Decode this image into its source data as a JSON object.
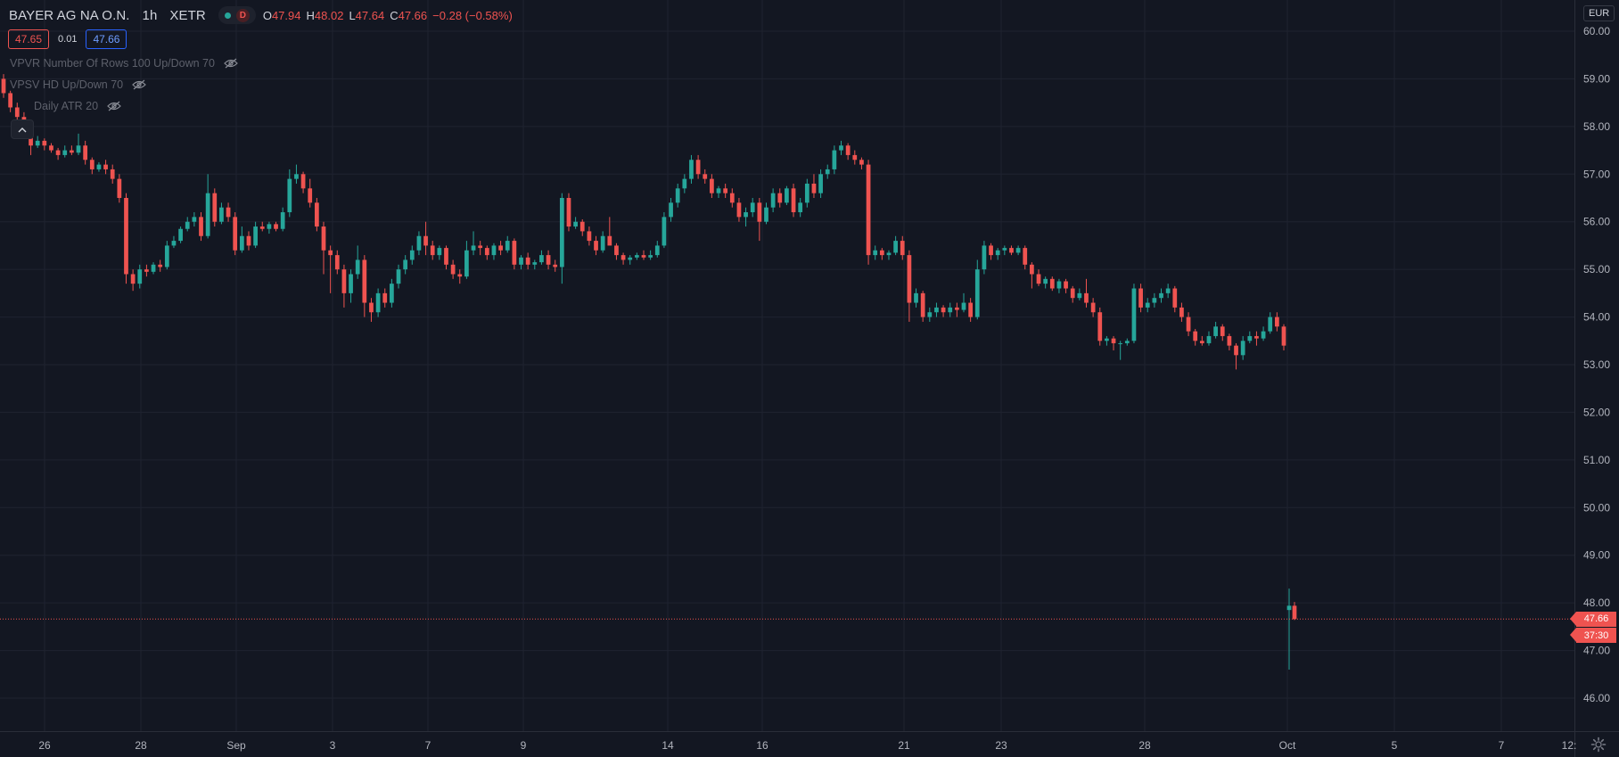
{
  "header": {
    "symbol": "BAYER AG NA O.N.",
    "interval": "1h",
    "exchange": "XETR",
    "market_status_letter": "D",
    "ohlc": {
      "o_label": "O",
      "o": "47.94",
      "h_label": "H",
      "h": "48.02",
      "l_label": "L",
      "l": "47.64",
      "c_label": "C",
      "c": "47.66",
      "change": "−0.28 (−0.58%)"
    },
    "bid": "47.65",
    "spread": "0.01",
    "ask": "47.66"
  },
  "indicators": [
    {
      "label": "VPVR Number Of Rows 100 Up/Down 70"
    },
    {
      "label": "VPSV HD Up/Down 70"
    },
    {
      "label": "Daily ATR 20"
    }
  ],
  "currency": "EUR",
  "last_price_label": "47.66",
  "countdown_label": "37:30",
  "colors": {
    "background": "#131722",
    "up": "#26a69a",
    "down": "#ef5350",
    "grid": "#1f2330",
    "axis_text": "#b2b5be"
  },
  "icons": {
    "eye": "eye-off-icon",
    "collapse": "chevron-up-icon",
    "settings": "gear-icon"
  },
  "chart_data": {
    "type": "candlestick",
    "y_unit": "EUR",
    "ylim": [
      45.3,
      60.3
    ],
    "y_ticks": [
      "60.00",
      "59.00",
      "58.00",
      "57.00",
      "56.00",
      "55.00",
      "54.00",
      "53.00",
      "52.00",
      "51.00",
      "50.00",
      "49.00",
      "48.00",
      "47.00",
      "46.00"
    ],
    "x_ticks": [
      "26",
      "28",
      "Sep",
      "3",
      "7",
      "9",
      "14",
      "16",
      "21",
      "23",
      "28",
      "Oct",
      "5",
      "7",
      "12:"
    ],
    "last_price": 47.66,
    "candles": [
      [
        59.0,
        59.1,
        58.6,
        58.7
      ],
      [
        58.7,
        58.75,
        58.3,
        58.4
      ],
      [
        58.4,
        58.5,
        58.1,
        58.2
      ],
      [
        58.2,
        58.3,
        57.8,
        57.9
      ],
      [
        57.9,
        58.0,
        57.4,
        57.6
      ],
      [
        57.6,
        57.8,
        57.55,
        57.7
      ],
      [
        57.7,
        57.75,
        57.5,
        57.6
      ],
      [
        57.6,
        57.65,
        57.45,
        57.5
      ],
      [
        57.5,
        57.55,
        57.3,
        57.4
      ],
      [
        57.4,
        57.6,
        57.35,
        57.5
      ],
      [
        57.5,
        57.6,
        57.4,
        57.45
      ],
      [
        57.45,
        57.85,
        57.4,
        57.6
      ],
      [
        57.6,
        57.7,
        57.2,
        57.3
      ],
      [
        57.3,
        57.35,
        57.0,
        57.1
      ],
      [
        57.1,
        57.25,
        57.05,
        57.2
      ],
      [
        57.2,
        57.3,
        57.0,
        57.1
      ],
      [
        57.1,
        57.2,
        56.8,
        56.9
      ],
      [
        56.9,
        57.0,
        56.4,
        56.5
      ],
      [
        56.5,
        56.6,
        54.7,
        54.9
      ],
      [
        54.9,
        55.0,
        54.55,
        54.7
      ],
      [
        54.7,
        55.1,
        54.6,
        55.0
      ],
      [
        55.0,
        55.1,
        54.85,
        54.95
      ],
      [
        54.95,
        55.15,
        54.9,
        55.1
      ],
      [
        55.1,
        55.2,
        54.95,
        55.05
      ],
      [
        55.05,
        55.6,
        55.0,
        55.5
      ],
      [
        55.5,
        55.7,
        55.45,
        55.6
      ],
      [
        55.6,
        55.9,
        55.55,
        55.85
      ],
      [
        55.85,
        56.1,
        55.8,
        56.0
      ],
      [
        56.0,
        56.2,
        55.9,
        56.1
      ],
      [
        56.1,
        56.2,
        55.6,
        55.7
      ],
      [
        55.7,
        57.0,
        55.65,
        56.6
      ],
      [
        56.6,
        56.7,
        55.9,
        56.0
      ],
      [
        56.0,
        56.4,
        55.95,
        56.3
      ],
      [
        56.3,
        56.4,
        56.0,
        56.1
      ],
      [
        56.1,
        56.2,
        55.3,
        55.4
      ],
      [
        55.4,
        55.9,
        55.35,
        55.7
      ],
      [
        55.7,
        55.8,
        55.4,
        55.5
      ],
      [
        55.5,
        56.0,
        55.45,
        55.9
      ],
      [
        55.9,
        56.0,
        55.8,
        55.85
      ],
      [
        55.85,
        56.0,
        55.75,
        55.95
      ],
      [
        55.95,
        56.0,
        55.8,
        55.85
      ],
      [
        55.85,
        56.3,
        55.8,
        56.2
      ],
      [
        56.2,
        57.1,
        56.1,
        56.9
      ],
      [
        56.9,
        57.2,
        56.8,
        57.0
      ],
      [
        57.0,
        57.05,
        56.6,
        56.7
      ],
      [
        56.7,
        56.9,
        56.3,
        56.4
      ],
      [
        56.4,
        56.5,
        55.8,
        55.9
      ],
      [
        55.9,
        56.0,
        54.9,
        55.4
      ],
      [
        55.4,
        55.5,
        54.5,
        55.3
      ],
      [
        55.3,
        55.4,
        54.9,
        55.0
      ],
      [
        55.0,
        55.1,
        54.2,
        54.5
      ],
      [
        54.5,
        55.0,
        54.3,
        54.9
      ],
      [
        54.9,
        55.5,
        54.8,
        55.2
      ],
      [
        55.2,
        55.3,
        54.0,
        54.3
      ],
      [
        54.3,
        54.4,
        53.9,
        54.1
      ],
      [
        54.1,
        54.6,
        54.0,
        54.5
      ],
      [
        54.5,
        54.6,
        54.2,
        54.3
      ],
      [
        54.3,
        54.8,
        54.2,
        54.7
      ],
      [
        54.7,
        55.1,
        54.6,
        55.0
      ],
      [
        55.0,
        55.3,
        54.9,
        55.2
      ],
      [
        55.2,
        55.5,
        55.1,
        55.4
      ],
      [
        55.4,
        55.8,
        55.3,
        55.7
      ],
      [
        55.7,
        56.0,
        55.3,
        55.5
      ],
      [
        55.5,
        55.6,
        55.2,
        55.3
      ],
      [
        55.3,
        55.5,
        55.2,
        55.45
      ],
      [
        55.45,
        55.5,
        55.0,
        55.1
      ],
      [
        55.1,
        55.2,
        54.8,
        54.9
      ],
      [
        54.9,
        55.0,
        54.7,
        54.85
      ],
      [
        54.85,
        55.6,
        54.8,
        55.4
      ],
      [
        55.4,
        55.8,
        55.3,
        55.5
      ],
      [
        55.5,
        55.6,
        55.3,
        55.45
      ],
      [
        55.45,
        55.5,
        55.2,
        55.3
      ],
      [
        55.3,
        55.55,
        55.2,
        55.5
      ],
      [
        55.5,
        55.6,
        55.3,
        55.4
      ],
      [
        55.4,
        55.7,
        55.35,
        55.6
      ],
      [
        55.6,
        55.65,
        55.0,
        55.1
      ],
      [
        55.1,
        55.3,
        55.0,
        55.25
      ],
      [
        55.25,
        55.35,
        55.0,
        55.1
      ],
      [
        55.1,
        55.2,
        55.0,
        55.15
      ],
      [
        55.15,
        55.4,
        55.1,
        55.3
      ],
      [
        55.3,
        55.4,
        55.0,
        55.1
      ],
      [
        55.1,
        55.2,
        54.95,
        55.05
      ],
      [
        55.05,
        56.6,
        54.7,
        56.5
      ],
      [
        56.5,
        56.6,
        55.8,
        55.9
      ],
      [
        55.9,
        56.1,
        55.85,
        56.0
      ],
      [
        56.0,
        56.05,
        55.7,
        55.8
      ],
      [
        55.8,
        55.9,
        55.5,
        55.6
      ],
      [
        55.6,
        55.7,
        55.3,
        55.4
      ],
      [
        55.4,
        55.8,
        55.35,
        55.7
      ],
      [
        55.7,
        56.1,
        55.6,
        55.5
      ],
      [
        55.5,
        55.55,
        55.2,
        55.3
      ],
      [
        55.3,
        55.35,
        55.1,
        55.2
      ],
      [
        55.2,
        55.3,
        55.1,
        55.25
      ],
      [
        55.25,
        55.35,
        55.2,
        55.3
      ],
      [
        55.3,
        55.4,
        55.2,
        55.25
      ],
      [
        55.25,
        55.4,
        55.2,
        55.3
      ],
      [
        55.3,
        55.6,
        55.25,
        55.5
      ],
      [
        55.5,
        56.2,
        55.45,
        56.1
      ],
      [
        56.1,
        56.5,
        56.0,
        56.4
      ],
      [
        56.4,
        56.8,
        56.3,
        56.7
      ],
      [
        56.7,
        57.0,
        56.6,
        56.9
      ],
      [
        56.9,
        57.4,
        56.8,
        57.3
      ],
      [
        57.3,
        57.4,
        56.9,
        57.0
      ],
      [
        57.0,
        57.1,
        56.8,
        56.9
      ],
      [
        56.9,
        57.0,
        56.5,
        56.6
      ],
      [
        56.6,
        56.75,
        56.5,
        56.7
      ],
      [
        56.7,
        56.8,
        56.5,
        56.6
      ],
      [
        56.6,
        56.7,
        56.3,
        56.4
      ],
      [
        56.4,
        56.5,
        56.0,
        56.1
      ],
      [
        56.1,
        56.3,
        55.9,
        56.2
      ],
      [
        56.2,
        56.5,
        56.1,
        56.4
      ],
      [
        56.4,
        56.5,
        55.6,
        56.0
      ],
      [
        56.0,
        56.4,
        55.95,
        56.3
      ],
      [
        56.3,
        56.7,
        56.2,
        56.6
      ],
      [
        56.6,
        56.7,
        56.3,
        56.4
      ],
      [
        56.4,
        56.75,
        56.35,
        56.7
      ],
      [
        56.7,
        56.8,
        56.1,
        56.2
      ],
      [
        56.2,
        56.5,
        56.1,
        56.4
      ],
      [
        56.4,
        56.9,
        56.3,
        56.8
      ],
      [
        56.8,
        57.0,
        56.5,
        56.6
      ],
      [
        56.6,
        57.1,
        56.5,
        57.0
      ],
      [
        57.0,
        57.2,
        56.9,
        57.1
      ],
      [
        57.1,
        57.6,
        57.0,
        57.5
      ],
      [
        57.5,
        57.7,
        57.4,
        57.6
      ],
      [
        57.6,
        57.65,
        57.3,
        57.4
      ],
      [
        57.4,
        57.5,
        57.2,
        57.3
      ],
      [
        57.3,
        57.35,
        57.1,
        57.2
      ],
      [
        57.2,
        57.3,
        55.1,
        55.3
      ],
      [
        55.3,
        55.5,
        55.2,
        55.4
      ],
      [
        55.4,
        55.45,
        55.2,
        55.3
      ],
      [
        55.3,
        55.4,
        55.2,
        55.35
      ],
      [
        55.35,
        55.7,
        55.3,
        55.6
      ],
      [
        55.6,
        55.7,
        55.2,
        55.3
      ],
      [
        55.3,
        55.4,
        53.9,
        54.3
      ],
      [
        54.3,
        54.6,
        54.2,
        54.5
      ],
      [
        54.5,
        54.55,
        53.9,
        54.0
      ],
      [
        54.0,
        54.2,
        53.9,
        54.1
      ],
      [
        54.1,
        54.3,
        54.0,
        54.2
      ],
      [
        54.2,
        54.25,
        54.0,
        54.1
      ],
      [
        54.1,
        54.3,
        54.0,
        54.2
      ],
      [
        54.2,
        54.3,
        54.0,
        54.15
      ],
      [
        54.15,
        54.5,
        54.1,
        54.3
      ],
      [
        54.3,
        54.4,
        53.9,
        54.0
      ],
      [
        54.0,
        55.2,
        53.95,
        55.0
      ],
      [
        55.0,
        55.6,
        54.9,
        55.5
      ],
      [
        55.5,
        55.55,
        55.2,
        55.3
      ],
      [
        55.3,
        55.45,
        55.2,
        55.4
      ],
      [
        55.4,
        55.5,
        55.3,
        55.45
      ],
      [
        55.45,
        55.5,
        55.3,
        55.35
      ],
      [
        55.35,
        55.5,
        55.3,
        55.45
      ],
      [
        55.45,
        55.5,
        55.0,
        55.1
      ],
      [
        55.1,
        55.15,
        54.6,
        54.9
      ],
      [
        54.9,
        55.0,
        54.65,
        54.7
      ],
      [
        54.7,
        54.85,
        54.6,
        54.8
      ],
      [
        54.8,
        54.85,
        54.55,
        54.6
      ],
      [
        54.6,
        54.8,
        54.5,
        54.75
      ],
      [
        54.75,
        54.8,
        54.5,
        54.6
      ],
      [
        54.6,
        54.65,
        54.3,
        54.4
      ],
      [
        54.4,
        54.6,
        54.35,
        54.5
      ],
      [
        54.5,
        54.8,
        54.2,
        54.3
      ],
      [
        54.3,
        54.4,
        54.0,
        54.1
      ],
      [
        54.1,
        54.2,
        53.4,
        53.5
      ],
      [
        53.5,
        53.6,
        53.4,
        53.55
      ],
      [
        53.55,
        53.6,
        53.3,
        53.45
      ],
      [
        53.45,
        53.5,
        53.1,
        53.45
      ],
      [
        53.45,
        53.55,
        53.4,
        53.5
      ],
      [
        53.5,
        54.7,
        53.45,
        54.6
      ],
      [
        54.6,
        54.7,
        54.1,
        54.2
      ],
      [
        54.2,
        54.4,
        54.1,
        54.3
      ],
      [
        54.3,
        54.5,
        54.2,
        54.4
      ],
      [
        54.4,
        54.6,
        54.3,
        54.5
      ],
      [
        54.5,
        54.7,
        54.4,
        54.6
      ],
      [
        54.6,
        54.65,
        54.1,
        54.2
      ],
      [
        54.2,
        54.3,
        53.9,
        54.0
      ],
      [
        54.0,
        54.1,
        53.6,
        53.7
      ],
      [
        53.7,
        53.75,
        53.4,
        53.5
      ],
      [
        53.5,
        53.6,
        53.4,
        53.45
      ],
      [
        53.45,
        53.7,
        53.4,
        53.6
      ],
      [
        53.6,
        53.9,
        53.55,
        53.8
      ],
      [
        53.8,
        53.85,
        53.5,
        53.6
      ],
      [
        53.6,
        53.65,
        53.3,
        53.4
      ],
      [
        53.4,
        53.45,
        52.9,
        53.2
      ],
      [
        53.2,
        53.6,
        53.1,
        53.5
      ],
      [
        53.5,
        53.7,
        53.45,
        53.6
      ],
      [
        53.6,
        53.7,
        53.4,
        53.55
      ],
      [
        53.55,
        53.8,
        53.5,
        53.7
      ],
      [
        53.7,
        54.1,
        53.65,
        54.0
      ],
      [
        54.0,
        54.1,
        53.7,
        53.8
      ],
      [
        53.8,
        53.85,
        53.3,
        53.4
      ]
    ],
    "latest_candles": [
      [
        47.85,
        48.3,
        46.6,
        47.94
      ],
      [
        47.94,
        48.02,
        47.64,
        47.66
      ]
    ]
  }
}
